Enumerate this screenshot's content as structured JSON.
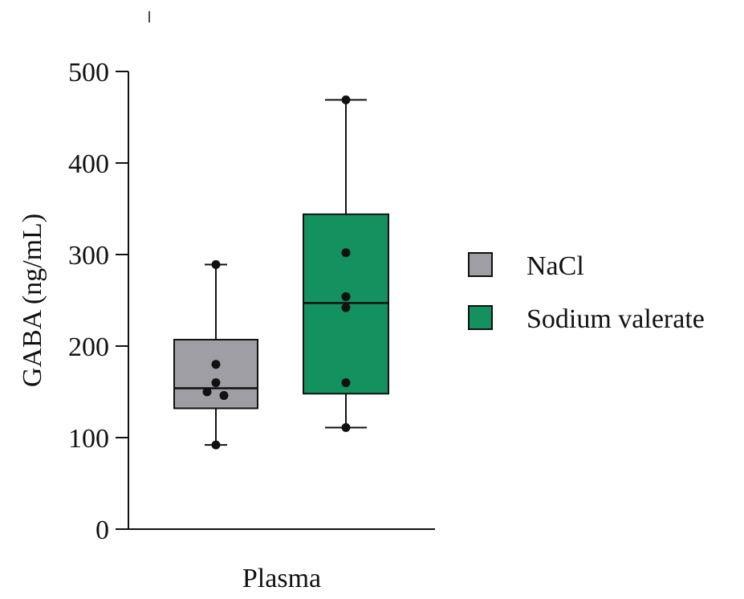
{
  "chart_data": {
    "type": "box",
    "ylabel": "GABA (ng/mL)",
    "xlabel": "",
    "ylim": [
      0,
      500
    ],
    "yticks": [
      0,
      100,
      200,
      300,
      400,
      500
    ],
    "categories": [
      "Plasma"
    ],
    "legend_position": "right",
    "series": [
      {
        "name": "NaCl",
        "color": "#9e9ea4",
        "min": 92,
        "q1": 132,
        "median": 154,
        "q3": 207,
        "max": 289,
        "points": [
          180,
          160,
          150,
          146
        ]
      },
      {
        "name": "Sodium valerate",
        "color": "#13915e",
        "min": 111,
        "q1": 148,
        "median": 247,
        "q3": 344,
        "max": 469,
        "points": [
          302,
          254,
          242,
          160
        ]
      }
    ]
  }
}
